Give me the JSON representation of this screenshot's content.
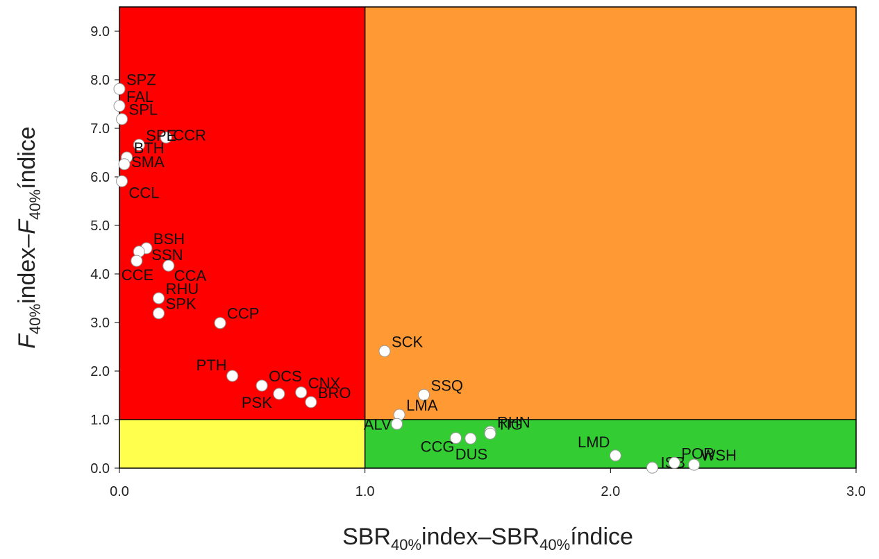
{
  "chart_data": {
    "type": "scatter",
    "x_label": [
      "SBR",
      "40%",
      "index–SBR",
      "40%",
      "índice"
    ],
    "y_label": [
      "F",
      "40%",
      "index–",
      "F",
      "40%",
      "índice"
    ],
    "xlim": [
      0,
      3
    ],
    "ylim": [
      0,
      9.5
    ],
    "xticks": [
      {
        "value": 0,
        "label": "0.0"
      },
      {
        "value": 1,
        "label": "1.0"
      },
      {
        "value": 2,
        "label": "2.0"
      },
      {
        "value": 3,
        "label": "3.0"
      }
    ],
    "yticks": [
      {
        "value": 0,
        "label": "0.0"
      },
      {
        "value": 1,
        "label": "1.0"
      },
      {
        "value": 2,
        "label": "2.0"
      },
      {
        "value": 3,
        "label": "3.0"
      },
      {
        "value": 4,
        "label": "4.0"
      },
      {
        "value": 5,
        "label": "5.0"
      },
      {
        "value": 6,
        "label": "6.0"
      },
      {
        "value": 7,
        "label": "7.0"
      },
      {
        "value": 8,
        "label": "8.0"
      },
      {
        "value": 9,
        "label": "9.0"
      }
    ],
    "reference": {
      "x": 1,
      "y": 1
    },
    "quadrant_colors": {
      "top_left": "#ff0000",
      "top_right": "#ff9933",
      "bottom_left": "#ffff4d",
      "bottom_right": "#33cc33"
    },
    "point_color": "#ffffff",
    "labels": [
      "SPZ",
      "FAL",
      "SPL",
      "CCR",
      "SPE",
      "BTH",
      "SMA",
      "CCL",
      "BSH",
      "SSN",
      "CCE",
      "CCA",
      "RHU",
      "SPK",
      "CCP",
      "SCK",
      "PTH",
      "OCS",
      "CNX",
      "PSK",
      "BRO",
      "SSQ",
      "LMA",
      "ALV",
      "RHN",
      "TIG",
      "DUS",
      "CCG",
      "LMD",
      "ISB",
      "POR",
      "WSH"
    ],
    "x": [
      0.0,
      0.0,
      0.01,
      0.19,
      0.08,
      0.03,
      0.02,
      0.01,
      0.11,
      0.08,
      0.07,
      0.2,
      0.16,
      0.16,
      0.41,
      1.08,
      0.46,
      0.58,
      0.74,
      0.65,
      0.78,
      1.24,
      1.14,
      1.13,
      1.51,
      1.51,
      1.43,
      1.37,
      2.02,
      2.17,
      2.26,
      2.34
    ],
    "y": [
      7.81,
      7.46,
      7.19,
      6.81,
      6.66,
      6.4,
      6.26,
      5.91,
      4.53,
      4.46,
      4.27,
      4.17,
      3.5,
      3.19,
      2.99,
      2.41,
      1.9,
      1.7,
      1.56,
      1.53,
      1.36,
      1.51,
      1.1,
      0.91,
      0.75,
      0.71,
      0.61,
      0.62,
      0.26,
      0.01,
      0.11,
      0.07
    ]
  }
}
